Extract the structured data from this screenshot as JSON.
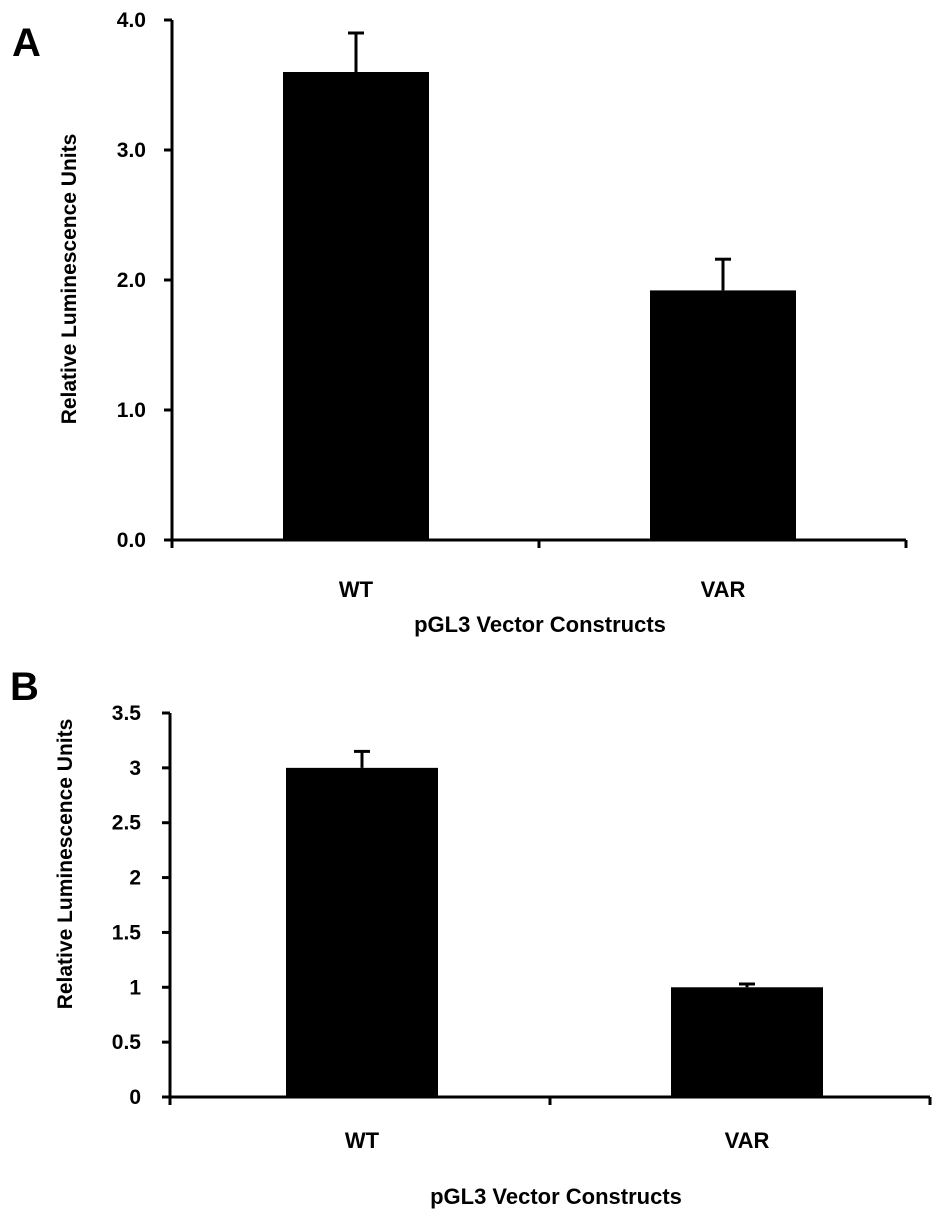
{
  "chart_data": [
    {
      "type": "bar",
      "panel_label": "A",
      "categories": [
        "WT",
        "VAR"
      ],
      "values": [
        3.6,
        1.92
      ],
      "errors": [
        0.3,
        0.24
      ],
      "xlabel": "pGL3 Vector Constructs",
      "ylabel": "Relative Luminescence Units",
      "ylim": [
        0,
        4.0
      ],
      "yticks": [
        "0.0",
        "1.0",
        "2.0",
        "3.0",
        "4.0"
      ],
      "grid": false,
      "bar_color": "#000000"
    },
    {
      "type": "bar",
      "panel_label": "B",
      "categories": [
        "WT",
        "VAR"
      ],
      "values": [
        3.0,
        1.0
      ],
      "errors": [
        0.15,
        0.03
      ],
      "xlabel": "pGL3 Vector Constructs",
      "ylabel": "Relative Luminescence Units",
      "ylim": [
        0,
        3.5
      ],
      "yticks": [
        "0",
        "0.5",
        "1",
        "1.5",
        "2",
        "2.5",
        "3",
        "3.5"
      ],
      "grid": false,
      "bar_color": "#000000"
    }
  ]
}
